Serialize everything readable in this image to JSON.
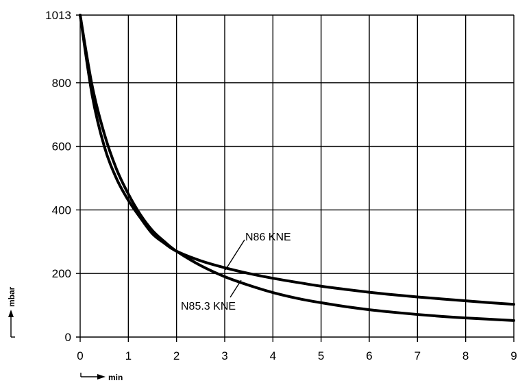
{
  "chart_data": {
    "type": "line",
    "title": "",
    "xlabel": "min",
    "ylabel": "mbar",
    "xlim": [
      0,
      9
    ],
    "ylim": [
      0,
      1013
    ],
    "x_ticks": [
      0,
      1,
      2,
      3,
      4,
      5,
      6,
      7,
      8,
      9
    ],
    "y_ticks": [
      0,
      200,
      400,
      600,
      800,
      1013
    ],
    "grid": true,
    "series": [
      {
        "name": "N86 KNE",
        "x": [
          0,
          0.25,
          0.5,
          0.75,
          1,
          1.25,
          1.5,
          1.75,
          2,
          2.5,
          3,
          3.5,
          4,
          4.5,
          5,
          5.5,
          6,
          6.5,
          7,
          7.5,
          8,
          8.5,
          9
        ],
        "y": [
          1013,
          760,
          600,
          500,
          430,
          375,
          325,
          295,
          270,
          240,
          218,
          200,
          185,
          172,
          160,
          150,
          141,
          133,
          126,
          120,
          114,
          108,
          103
        ]
      },
      {
        "name": "N85.3 KNE",
        "x": [
          0,
          0.25,
          0.5,
          0.75,
          1,
          1.25,
          1.5,
          1.75,
          2,
          2.5,
          3,
          3.5,
          4,
          4.5,
          5,
          5.5,
          6,
          6.5,
          7,
          7.5,
          8,
          8.5,
          9
        ],
        "y": [
          1013,
          790,
          640,
          530,
          450,
          385,
          335,
          300,
          270,
          225,
          190,
          163,
          140,
          122,
          108,
          96,
          86,
          78,
          71,
          65,
          60,
          56,
          52
        ]
      }
    ]
  }
}
